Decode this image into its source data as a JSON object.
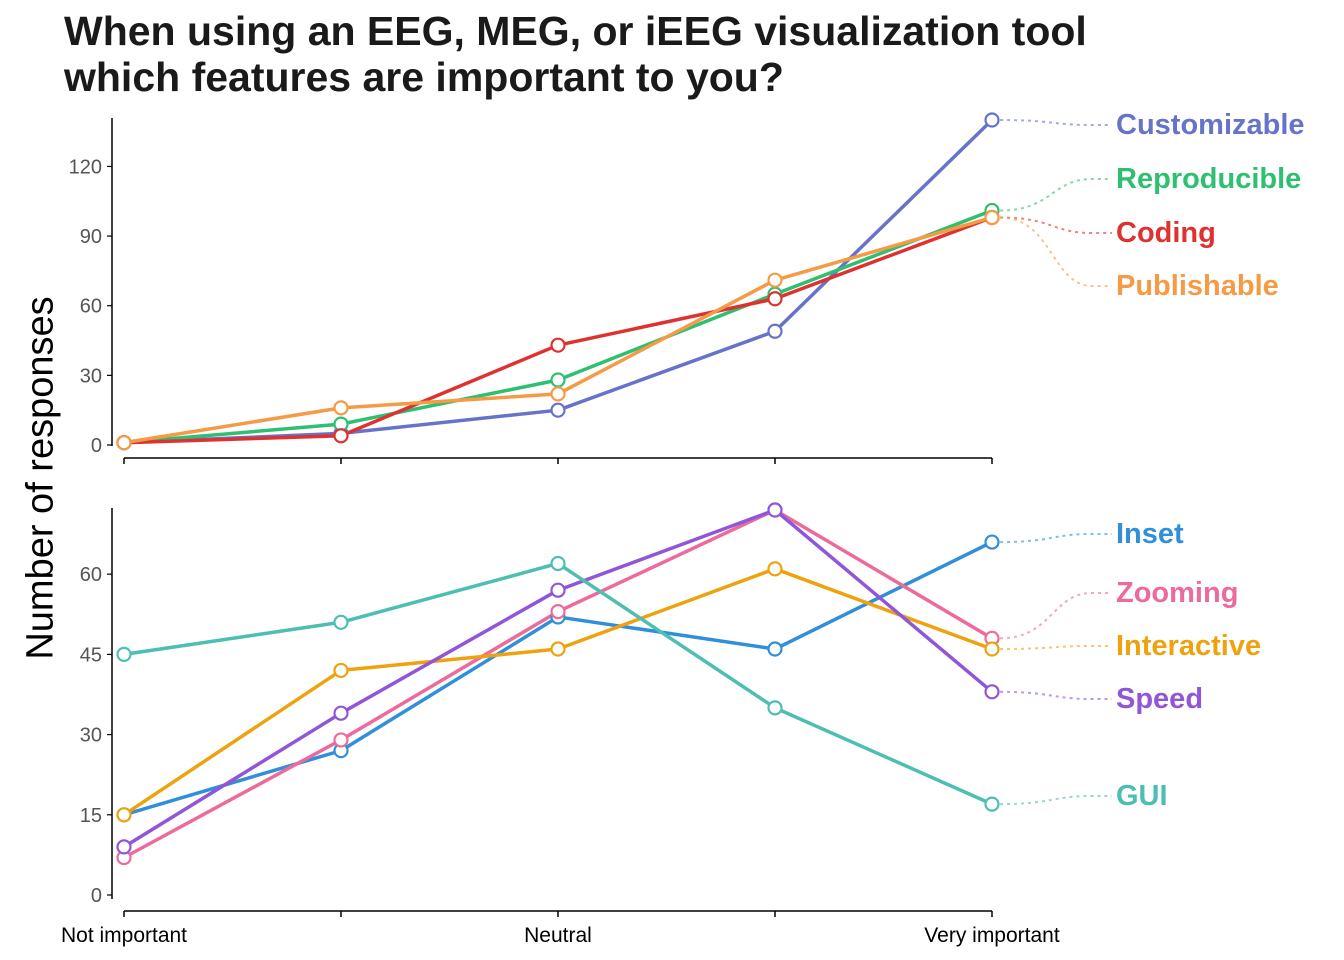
{
  "title_line1": "When using an EEG, MEG, or iEEG visualization tool",
  "title_line2": "which features are important to you?",
  "ylabel": "Number of responses",
  "chart_data": [
    {
      "type": "line",
      "panel": "top",
      "x": [
        1,
        2,
        3,
        4,
        5
      ],
      "x_tick_labels": [
        "Not important",
        "",
        "Neutral",
        "",
        "Very important"
      ],
      "ylim": [
        0,
        140
      ],
      "yticks": [
        0,
        30,
        60,
        90,
        120
      ],
      "grid": false,
      "legend": "direct labels at right",
      "series": [
        {
          "name": "Customizable",
          "color": "#6673c9",
          "values": [
            1,
            5,
            15,
            49,
            140
          ]
        },
        {
          "name": "Reproducible",
          "color": "#2fbf71",
          "values": [
            1,
            9,
            28,
            65,
            101
          ]
        },
        {
          "name": "Coding",
          "color": "#e03131",
          "values": [
            1,
            4,
            43,
            63,
            98
          ]
        },
        {
          "name": "Publishable",
          "color": "#f59a45",
          "values": [
            1,
            16,
            22,
            71,
            98
          ]
        }
      ]
    },
    {
      "type": "line",
      "panel": "bottom",
      "x": [
        1,
        2,
        3,
        4,
        5
      ],
      "x_tick_labels": [
        "Not important",
        "",
        "Neutral",
        "",
        "Very important"
      ],
      "ylim": [
        0,
        72
      ],
      "yticks": [
        0,
        15,
        30,
        45,
        60
      ],
      "grid": false,
      "legend": "direct labels at right",
      "series": [
        {
          "name": "Inset",
          "color": "#2f8fdb",
          "values": [
            15,
            27,
            52,
            46,
            66
          ]
        },
        {
          "name": "Zooming",
          "color": "#ec6b9c",
          "values": [
            7,
            29,
            53,
            72,
            48
          ]
        },
        {
          "name": "Interactive",
          "color": "#eea20e",
          "values": [
            15,
            42,
            46,
            61,
            46
          ]
        },
        {
          "name": "Speed",
          "color": "#9055d9",
          "values": [
            9,
            34,
            57,
            72,
            38
          ]
        },
        {
          "name": "GUI",
          "color": "#4dbfb2",
          "values": [
            45,
            51,
            62,
            35,
            17
          ]
        }
      ]
    }
  ]
}
